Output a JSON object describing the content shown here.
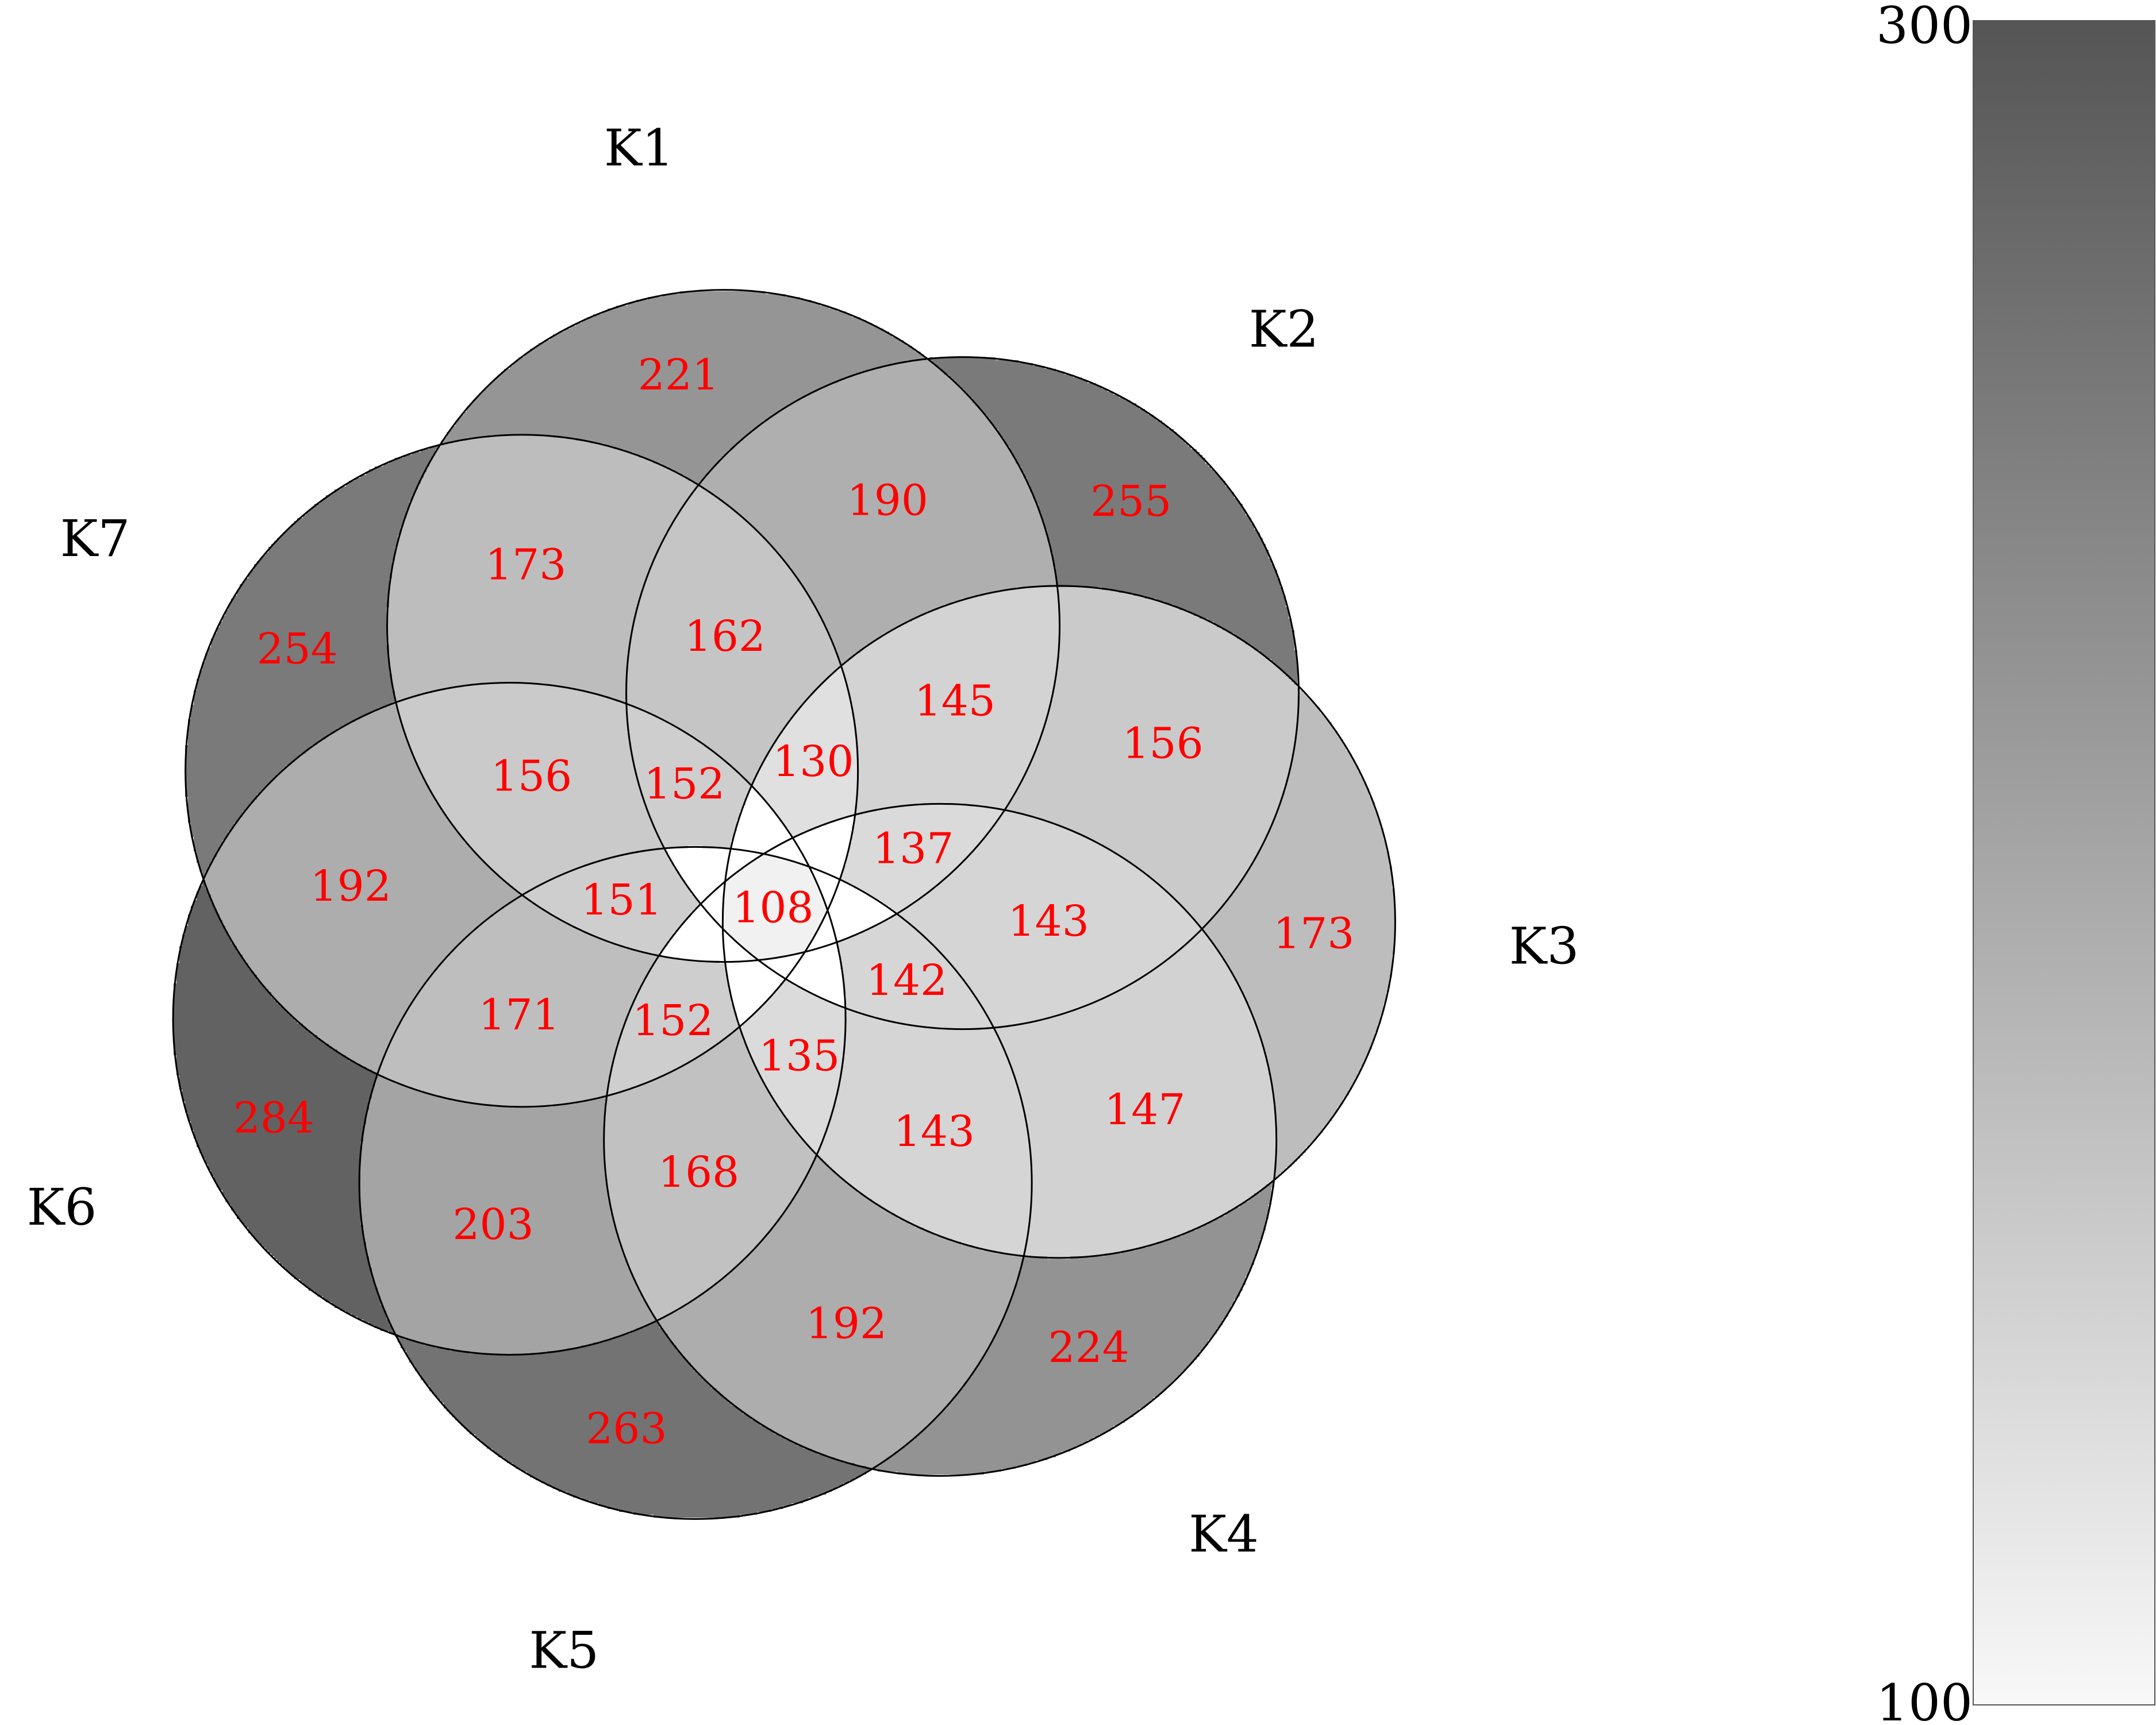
{
  "chart_data": {
    "type": "venn",
    "sets": [
      "K1",
      "K2",
      "K3",
      "K4",
      "K5",
      "K6",
      "K7"
    ],
    "regions": [
      {
        "sets": [
          "K1"
        ],
        "value": 221
      },
      {
        "sets": [
          "K2"
        ],
        "value": 255
      },
      {
        "sets": [
          "K3"
        ],
        "value": 173
      },
      {
        "sets": [
          "K4"
        ],
        "value": 224
      },
      {
        "sets": [
          "K5"
        ],
        "value": 263
      },
      {
        "sets": [
          "K6"
        ],
        "value": 284
      },
      {
        "sets": [
          "K7"
        ],
        "value": 254
      },
      {
        "sets": [
          "K1",
          "K2"
        ],
        "value": 190
      },
      {
        "sets": [
          "K2",
          "K3"
        ],
        "value": 156
      },
      {
        "sets": [
          "K3",
          "K4"
        ],
        "value": 147
      },
      {
        "sets": [
          "K4",
          "K5"
        ],
        "value": 192
      },
      {
        "sets": [
          "K5",
          "K6"
        ],
        "value": 203
      },
      {
        "sets": [
          "K6",
          "K7"
        ],
        "value": 192
      },
      {
        "sets": [
          "K7",
          "K1"
        ],
        "value": 173
      },
      {
        "sets": [
          "K7",
          "K1",
          "K2"
        ],
        "value": 162
      },
      {
        "sets": [
          "K1",
          "K2",
          "K3"
        ],
        "value": 145
      },
      {
        "sets": [
          "K2",
          "K3",
          "K4"
        ],
        "value": 143
      },
      {
        "sets": [
          "K3",
          "K4",
          "K5"
        ],
        "value": 143
      },
      {
        "sets": [
          "K4",
          "K5",
          "K6"
        ],
        "value": 168
      },
      {
        "sets": [
          "K5",
          "K6",
          "K7"
        ],
        "value": 171
      },
      {
        "sets": [
          "K6",
          "K7",
          "K1"
        ],
        "value": 156
      },
      {
        "sets": [
          "K6",
          "K7",
          "K1",
          "K2"
        ],
        "value": 152
      },
      {
        "sets": [
          "K7",
          "K1",
          "K2",
          "K3"
        ],
        "value": 130
      },
      {
        "sets": [
          "K1",
          "K2",
          "K3",
          "K4"
        ],
        "value": 137
      },
      {
        "sets": [
          "K2",
          "K3",
          "K4",
          "K5"
        ],
        "value": 142
      },
      {
        "sets": [
          "K3",
          "K4",
          "K5",
          "K6"
        ],
        "value": 135
      },
      {
        "sets": [
          "K4",
          "K5",
          "K6",
          "K7"
        ],
        "value": 152
      },
      {
        "sets": [
          "K5",
          "K6",
          "K7",
          "K1"
        ],
        "value": 151
      },
      {
        "sets": [
          "K1",
          "K2",
          "K3",
          "K4",
          "K5",
          "K6",
          "K7"
        ],
        "value": 108
      }
    ],
    "colorscale": {
      "min": 100,
      "max": 300,
      "min_label": "100",
      "max_label": "300",
      "min_color": "#f8f8f8",
      "max_color": "#555555"
    },
    "value_label_color": "#ff0000",
    "outline_color": "#000000"
  }
}
